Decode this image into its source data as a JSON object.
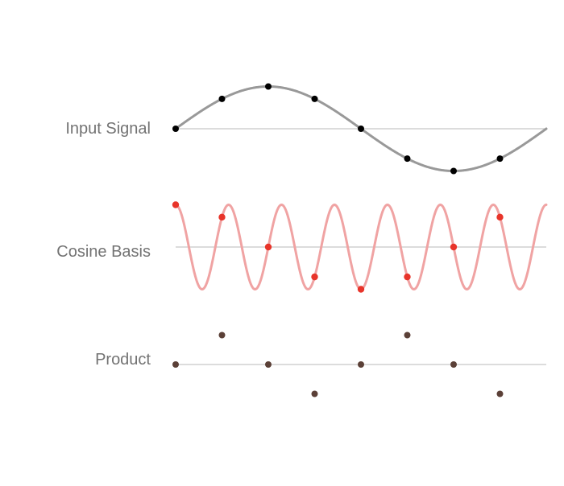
{
  "rows": [
    {
      "key": "input",
      "label": "Input Signal",
      "samples": [
        0,
        0.707,
        1,
        0.707,
        0,
        -0.707,
        -1,
        -0.707
      ],
      "curve_cycles": 1,
      "curve_color": "#999999",
      "dot_color": "#000000"
    },
    {
      "key": "basis",
      "label": "Cosine Basis",
      "samples": [
        1,
        0.707,
        0,
        -0.707,
        -1,
        -0.707,
        0,
        0.707
      ],
      "curve_cycles": 7,
      "curve_color": "#f0a3a3",
      "dot_color": "#e8342a"
    },
    {
      "key": "product",
      "label": "Product",
      "samples": [
        0,
        0.5,
        0,
        -0.5,
        0,
        0.5,
        0,
        -0.5
      ],
      "curve_cycles": 0,
      "curve_color": "",
      "dot_color": "#5b4037"
    }
  ],
  "axis_color": "#c8c8c8"
}
